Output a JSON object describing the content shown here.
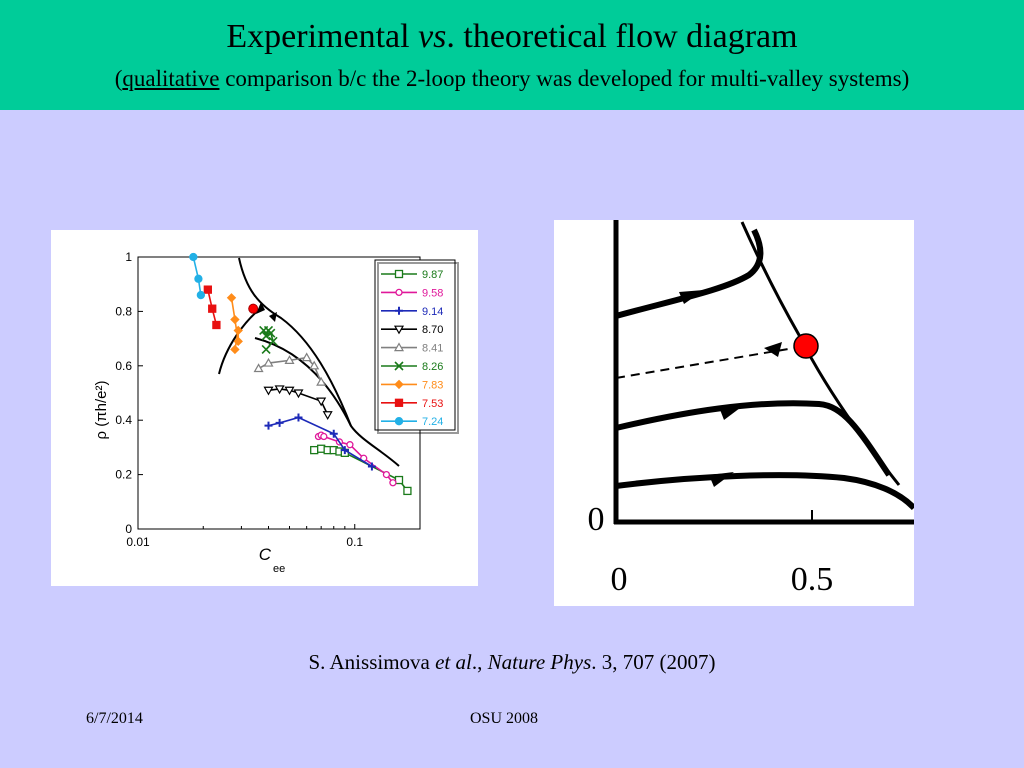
{
  "header": {
    "title_prefix": "Experimental ",
    "title_italic": "vs",
    "title_suffix": ". theoretical flow diagram",
    "subtitle_open": "(",
    "subtitle_underlined": "qualitative",
    "subtitle_rest": " comparison b/c the 2-loop theory was developed for multi-valley systems)"
  },
  "citation": {
    "author": "S. Anissimova ",
    "etal": "et al",
    "sep": "., ",
    "journal": "Nature Phys",
    "rest": ". 3, 707 (2007)"
  },
  "footer": {
    "date": "6/7/2014",
    "center": "OSU 2008"
  },
  "colors": {
    "header_bg": "#00cc99",
    "slide_bg": "#ccccff",
    "highlight_point": "#ff0000"
  },
  "chart_data": [
    {
      "type": "line",
      "xlabel": "C",
      "xlabel_sub": "ee",
      "ylabel": "ρ (πh/e²)",
      "x_scale": "log",
      "xlim": [
        0.01,
        0.2
      ],
      "ylim": [
        0,
        1
      ],
      "x_ticks": [
        {
          "v": 0.01,
          "label": "0.01"
        },
        {
          "v": 0.1,
          "label": "0.1"
        }
      ],
      "y_ticks": [
        {
          "v": 0,
          "label": "0"
        },
        {
          "v": 0.2,
          "label": "0.2"
        },
        {
          "v": 0.4,
          "label": "0.4"
        },
        {
          "v": 0.6,
          "label": "0.6"
        },
        {
          "v": 0.8,
          "label": "0.8"
        },
        {
          "v": 1,
          "label": "1"
        }
      ],
      "legend_position": "top-right",
      "series": [
        {
          "name": "9.87",
          "color": "#1a7a1a",
          "marker": "square",
          "x": [
            0.065,
            0.07,
            0.075,
            0.08,
            0.085,
            0.09,
            0.16,
            0.175
          ],
          "y": [
            0.29,
            0.295,
            0.29,
            0.29,
            0.285,
            0.28,
            0.18,
            0.14
          ]
        },
        {
          "name": "9.58",
          "color": "#e0189a",
          "marker": "circle",
          "x": [
            0.068,
            0.07,
            0.072,
            0.085,
            0.095,
            0.11,
            0.14,
            0.15
          ],
          "y": [
            0.34,
            0.345,
            0.34,
            0.32,
            0.31,
            0.26,
            0.2,
            0.17
          ]
        },
        {
          "name": "9.14",
          "color": "#1d2ab8",
          "marker": "plus",
          "x": [
            0.04,
            0.045,
            0.055,
            0.08,
            0.09,
            0.12
          ],
          "y": [
            0.38,
            0.39,
            0.41,
            0.35,
            0.29,
            0.23
          ]
        },
        {
          "name": "8.70",
          "color": "#000000",
          "marker": "tri-down",
          "x": [
            0.04,
            0.045,
            0.05,
            0.055,
            0.07,
            0.075
          ],
          "y": [
            0.51,
            0.515,
            0.51,
            0.5,
            0.47,
            0.42
          ]
        },
        {
          "name": "8.41",
          "color": "#808080",
          "marker": "tri-up",
          "x": [
            0.036,
            0.04,
            0.05,
            0.06,
            0.065,
            0.07
          ],
          "y": [
            0.59,
            0.61,
            0.62,
            0.63,
            0.6,
            0.54
          ]
        },
        {
          "name": "8.26",
          "color": "#1a7a1a",
          "marker": "cross",
          "x": [
            0.038,
            0.039,
            0.04,
            0.041,
            0.042,
            0.039
          ],
          "y": [
            0.73,
            0.71,
            0.73,
            0.72,
            0.69,
            0.66
          ]
        },
        {
          "name": "7.83",
          "color": "#ff8c1a",
          "marker": "diamond",
          "x": [
            0.027,
            0.028,
            0.029,
            0.029,
            0.028
          ],
          "y": [
            0.85,
            0.77,
            0.69,
            0.73,
            0.66
          ]
        },
        {
          "name": "7.53",
          "color": "#e81010",
          "marker": "square-filled",
          "x": [
            0.021,
            0.022,
            0.023
          ],
          "y": [
            0.88,
            0.81,
            0.75
          ]
        },
        {
          "name": "7.24",
          "color": "#22b0e6",
          "marker": "dot",
          "x": [
            0.018,
            0.019,
            0.0195
          ],
          "y": [
            1.0,
            0.92,
            0.86
          ]
        }
      ],
      "annotations": [
        {
          "type": "fixed-point",
          "x": 0.034,
          "y": 0.81,
          "color": "#ff0000"
        }
      ]
    },
    {
      "type": "line",
      "x_ticks": [
        {
          "v": 0,
          "label": "0"
        },
        {
          "v": 0.5,
          "label": "0.5"
        }
      ],
      "y_ticks": [
        {
          "v": 0,
          "label": "0"
        }
      ],
      "annotations": [
        {
          "type": "fixed-point",
          "x": 0.5,
          "color": "#ff0000"
        }
      ]
    }
  ]
}
